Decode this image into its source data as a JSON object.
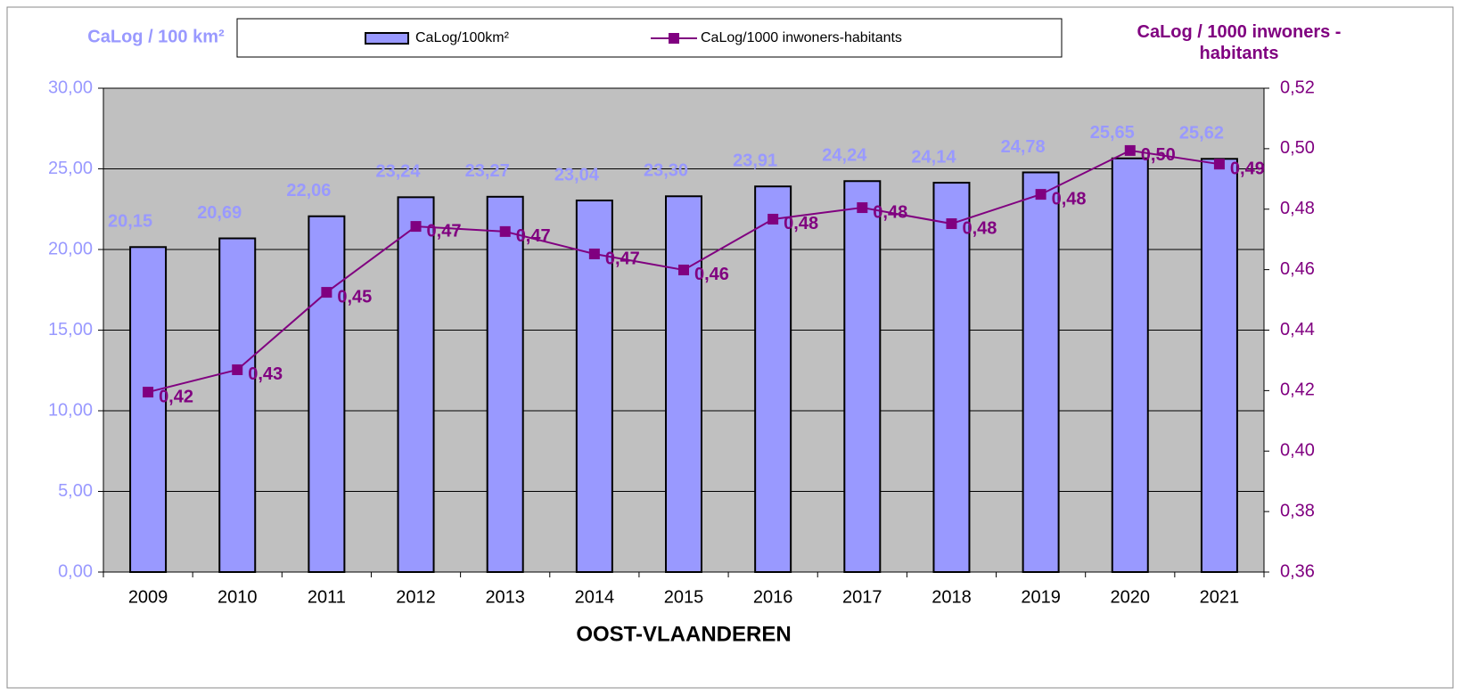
{
  "chart_data": {
    "type": "bar_line",
    "xlabel": "OOST-VLAANDEREN",
    "ylabel": "CaLog / 100 km²",
    "y2label": "CaLog / 1000 inwoners - habitants",
    "categories": [
      "2009",
      "2010",
      "2011",
      "2012",
      "2013",
      "2014",
      "2015",
      "2016",
      "2017",
      "2018",
      "2019",
      "2020",
      "2021"
    ],
    "series": [
      {
        "name": "CaLog/100km²",
        "type": "bar",
        "color": "#9999ff",
        "values": [
          20.15,
          20.69,
          22.06,
          23.24,
          23.27,
          23.04,
          23.3,
          23.91,
          24.24,
          24.14,
          24.78,
          25.65,
          25.62
        ],
        "value_labels": [
          "20,15",
          "20,69",
          "22,06",
          "23,24",
          "23,27",
          "23,04",
          "23,30",
          "23,91",
          "24,24",
          "24,14",
          "24,78",
          "25,65",
          "25,62"
        ]
      },
      {
        "name": "CaLog/1000 inwoners-habitants",
        "type": "line",
        "color": "#800080",
        "axis": "y2",
        "values": [
          0.4195,
          0.4269,
          0.4525,
          0.4743,
          0.4726,
          0.4652,
          0.4599,
          0.4767,
          0.4805,
          0.4752,
          0.4849,
          0.4994,
          0.4949
        ],
        "value_labels": [
          "0,42",
          "0,43",
          "0,45",
          "0,47",
          "0,47",
          "0,47",
          "0,46",
          "0,48",
          "0,48",
          "0,48",
          "0,48",
          "0,50",
          "0,49"
        ]
      }
    ],
    "ylim": [
      0,
      30
    ],
    "yticks": [
      {
        "value": 0,
        "label": "0,00"
      },
      {
        "value": 5,
        "label": "5,00"
      },
      {
        "value": 10,
        "label": "10,00"
      },
      {
        "value": 15,
        "label": "15,00"
      },
      {
        "value": 20,
        "label": "20,00"
      },
      {
        "value": 25,
        "label": "25,00"
      },
      {
        "value": 30,
        "label": "30,00"
      }
    ],
    "y2lim": [
      0.36,
      0.52
    ],
    "y2ticks": [
      {
        "value": 0.36,
        "label": "0,36"
      },
      {
        "value": 0.38,
        "label": "0,38"
      },
      {
        "value": 0.4,
        "label": "0,40"
      },
      {
        "value": 0.42,
        "label": "0,42"
      },
      {
        "value": 0.44,
        "label": "0,44"
      },
      {
        "value": 0.46,
        "label": "0,46"
      },
      {
        "value": 0.48,
        "label": "0,48"
      },
      {
        "value": 0.5,
        "label": "0,50"
      },
      {
        "value": 0.52,
        "label": "0,52"
      }
    ],
    "grid": true,
    "plot_background": "#c0c0c0",
    "legend": "top"
  }
}
